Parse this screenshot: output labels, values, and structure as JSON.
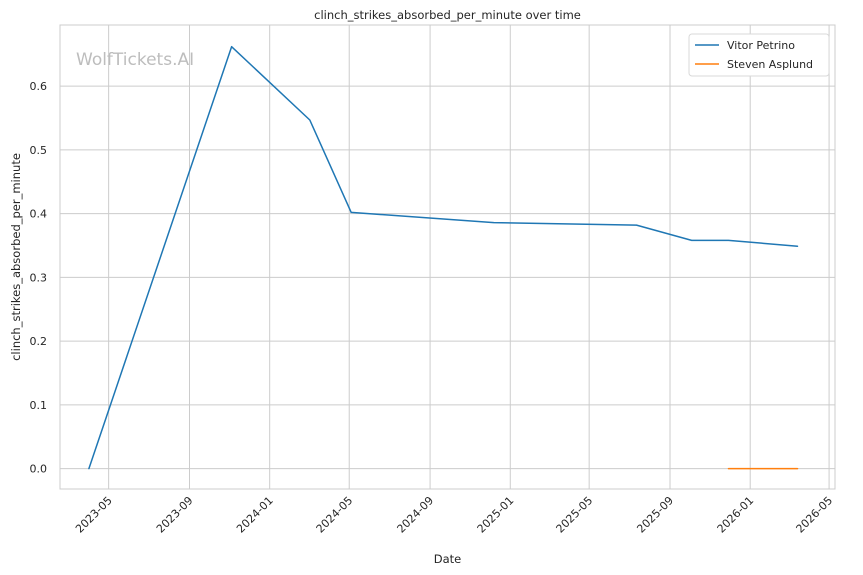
{
  "chart_data": {
    "type": "line",
    "title": "clinch_strikes_absorbed_per_minute over time",
    "xlabel": "Date",
    "ylabel": "clinch_strikes_absorbed_per_minute",
    "watermark": "WolfTickets.AI",
    "x_ticks": [
      "2023-05",
      "2023-09",
      "2024-01",
      "2024-05",
      "2024-09",
      "2025-01",
      "2025-05",
      "2025-09",
      "2026-01",
      "2026-05"
    ],
    "y_ticks": [
      0.0,
      0.1,
      0.2,
      0.3,
      0.4,
      0.5,
      0.6
    ],
    "y_tick_labels": [
      "0.0",
      "0.1",
      "0.2",
      "0.3",
      "0.4",
      "0.5",
      "0.6"
    ],
    "xlim": [
      "2023-02-16",
      "2026-05-10"
    ],
    "ylim": [
      -0.032,
      0.696
    ],
    "grid": true,
    "legend_position": "top-right",
    "series": [
      {
        "name": "Vitor Petrino",
        "color": "#1f77b4",
        "x": [
          "2023-04-01",
          "2023-11-04",
          "2024-03-02",
          "2024-05-04",
          "2024-12-07",
          "2025-07-12",
          "2025-10-04",
          "2025-11-29",
          "2026-03-14"
        ],
        "y": [
          0.0,
          0.662,
          0.547,
          0.402,
          0.386,
          0.382,
          0.358,
          0.358,
          0.349
        ]
      },
      {
        "name": "Steven Asplund",
        "color": "#ff7f0e",
        "x": [
          "2025-11-29",
          "2026-03-14"
        ],
        "y": [
          0.0,
          0.0
        ]
      }
    ]
  }
}
